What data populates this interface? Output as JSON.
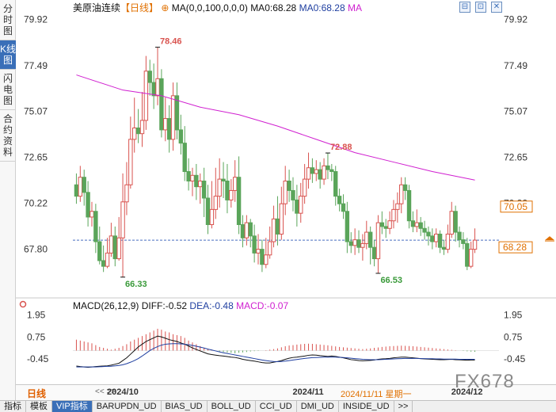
{
  "side_tabs": [
    "分时图",
    "K线图",
    "闪电图",
    "合约资料"
  ],
  "active_side_tab": 1,
  "legend": {
    "name": "美原油连续",
    "period": "【日线】",
    "ma_params": "MA(0,0,100,0,0,0)",
    "ma1": "MA0:68.28",
    "ma2": "MA0:68.28",
    "ma3": "MA"
  },
  "toolbar_icons": [
    "⊟",
    "⊡",
    "✕"
  ],
  "macd_legend": {
    "name": "MACD(26,12,9)",
    "diff": "DIFF:-0.52",
    "dea": "DEA:-0.48",
    "macd": "MACD:-0.07"
  },
  "colors": {
    "up": "#d9534f",
    "down": "#5aa55a",
    "ma": "#d020d0",
    "dea": "#1f3fa0",
    "diff": "#111111",
    "price_line": "#4a6fc0",
    "highlight": "#e07000"
  },
  "price_axis": {
    "ticks": [
      "79.92",
      "77.49",
      "75.07",
      "72.65",
      "70.22",
      "67.80"
    ],
    "left_ticks": [
      "79.92",
      "77.49",
      "75.07",
      "72.65",
      "70.22",
      "67.80"
    ],
    "current_price": "68.28",
    "marked_price": "70.05",
    "min": 65.4,
    "max": 80.2
  },
  "macd_axis": {
    "ticks": [
      "1.95",
      "0.75",
      "-0.45"
    ],
    "min": -1.2,
    "max": 2.2
  },
  "annotations": [
    {
      "text": "78.46",
      "idx": 21,
      "price": 78.46,
      "pos": "high"
    },
    {
      "text": "72.88",
      "idx": 65,
      "price": 72.88,
      "pos": "high"
    },
    {
      "text": "66.33",
      "idx": 12,
      "price": 66.33,
      "pos": "low"
    },
    {
      "text": "66.53",
      "idx": 78,
      "price": 66.53,
      "pos": "low"
    }
  ],
  "bottom_bar": {
    "period": "日线",
    "scroll": "<< >>",
    "dates": [
      {
        "text": "2024/10",
        "idx": 12
      },
      {
        "text": "2024/11",
        "idx": 60
      },
      {
        "text": "2024/12",
        "idx": 101
      }
    ],
    "cursor_date": "2024/11/11 星期一"
  },
  "watermark": "FX678",
  "bottom_tabs": [
    "指标",
    "模板",
    "VIP指标",
    "BARUPDN_UD",
    "BIAS_UD",
    "BOLL_UD",
    "CCI_UD",
    "DMI_UD",
    "INSIDE_UD",
    ">>"
  ],
  "active_bottom_tab": 2,
  "chart_data": {
    "type": "candlestick",
    "candles": [
      [
        71.2,
        70.6,
        71.8,
        70.2
      ],
      [
        70.6,
        71.6,
        72.2,
        70.3
      ],
      [
        71.6,
        70.8,
        72.0,
        70.1
      ],
      [
        70.8,
        69.5,
        71.4,
        69.0
      ],
      [
        69.5,
        69.8,
        70.3,
        69.0
      ],
      [
        69.8,
        68.2,
        70.2,
        67.6
      ],
      [
        68.2,
        67.2,
        69.0,
        67.0
      ],
      [
        67.2,
        66.9,
        68.0,
        66.6
      ],
      [
        66.9,
        67.6,
        68.4,
        66.8
      ],
      [
        67.6,
        68.5,
        69.2,
        67.4
      ],
      [
        68.5,
        67.3,
        69.0,
        66.9
      ],
      [
        67.3,
        68.4,
        69.5,
        67.2
      ],
      [
        68.4,
        70.3,
        71.8,
        66.33
      ],
      [
        70.3,
        71.2,
        72.4,
        69.6
      ],
      [
        71.2,
        73.6,
        74.8,
        71.0
      ],
      [
        73.6,
        74.2,
        75.8,
        72.9
      ],
      [
        74.2,
        73.9,
        75.2,
        73.4
      ],
      [
        73.9,
        74.6,
        76.1,
        73.2
      ],
      [
        74.6,
        77.2,
        78.0,
        74.1
      ],
      [
        77.2,
        76.6,
        77.8,
        75.9
      ],
      [
        76.6,
        75.9,
        77.6,
        75.2
      ],
      [
        75.9,
        76.8,
        78.46,
        75.4
      ],
      [
        76.8,
        74.1,
        77.3,
        73.7
      ],
      [
        74.1,
        74.7,
        75.8,
        73.5
      ],
      [
        74.7,
        73.6,
        75.4,
        72.9
      ],
      [
        73.6,
        75.9,
        76.6,
        73.0
      ],
      [
        75.9,
        74.1,
        76.6,
        73.6
      ],
      [
        74.1,
        73.4,
        74.9,
        72.8
      ],
      [
        73.4,
        71.9,
        74.3,
        71.4
      ],
      [
        71.9,
        71.4,
        72.6,
        70.9
      ],
      [
        71.4,
        71.7,
        72.1,
        70.6
      ],
      [
        71.7,
        71.1,
        72.3,
        70.4
      ],
      [
        71.1,
        71.4,
        71.8,
        70.2
      ],
      [
        71.4,
        70.5,
        72.1,
        69.5
      ],
      [
        70.5,
        69.1,
        71.2,
        68.6
      ],
      [
        69.1,
        69.9,
        71.4,
        68.9
      ],
      [
        69.9,
        70.6,
        72.1,
        69.4
      ],
      [
        70.6,
        71.5,
        72.6,
        70.0
      ],
      [
        71.5,
        71.4,
        72.4,
        70.5
      ],
      [
        71.4,
        70.4,
        72.3,
        69.7
      ],
      [
        70.4,
        70.9,
        71.5,
        70.0
      ],
      [
        70.9,
        71.6,
        72.5,
        70.3
      ],
      [
        71.6,
        69.1,
        72.7,
        68.6
      ],
      [
        69.1,
        68.4,
        69.6,
        67.9
      ],
      [
        68.4,
        69.2,
        69.6,
        68.0
      ],
      [
        69.2,
        68.5,
        69.4,
        67.9
      ],
      [
        68.5,
        67.6,
        69.1,
        67.1
      ],
      [
        67.6,
        67.8,
        68.6,
        67.0
      ],
      [
        67.8,
        67.0,
        68.3,
        66.6
      ],
      [
        67.0,
        67.5,
        68.4,
        66.8
      ],
      [
        67.5,
        68.2,
        69.0,
        67.3
      ],
      [
        68.2,
        69.4,
        70.1,
        67.9
      ],
      [
        69.4,
        68.6,
        70.6,
        68.0
      ],
      [
        68.6,
        70.2,
        71.1,
        68.3
      ],
      [
        70.2,
        71.4,
        72.2,
        69.6
      ],
      [
        71.4,
        70.9,
        72.0,
        70.3
      ],
      [
        70.9,
        70.4,
        71.6,
        69.8
      ],
      [
        70.4,
        69.7,
        71.2,
        69.0
      ],
      [
        69.7,
        70.6,
        71.3,
        69.2
      ],
      [
        70.6,
        71.5,
        72.3,
        70.2
      ],
      [
        71.5,
        72.1,
        72.9,
        71.0
      ],
      [
        72.1,
        71.8,
        72.6,
        71.3
      ],
      [
        71.8,
        72.0,
        72.5,
        71.4
      ],
      [
        72.0,
        71.5,
        72.4,
        71.0
      ],
      [
        71.5,
        72.2,
        72.6,
        71.2
      ],
      [
        72.2,
        72.0,
        72.88,
        71.5
      ],
      [
        72.0,
        71.9,
        72.3,
        71.4
      ],
      [
        71.9,
        70.6,
        72.2,
        70.1
      ],
      [
        70.6,
        70.2,
        71.0,
        69.8
      ],
      [
        70.2,
        69.8,
        70.7,
        69.4
      ],
      [
        69.8,
        68.2,
        70.3,
        67.6
      ],
      [
        68.2,
        68.0,
        68.7,
        67.6
      ],
      [
        68.0,
        68.3,
        68.9,
        67.5
      ],
      [
        68.3,
        67.9,
        68.8,
        67.6
      ],
      [
        67.9,
        68.1,
        68.6,
        67.2
      ],
      [
        68.1,
        68.7,
        69.3,
        67.8
      ],
      [
        68.7,
        67.9,
        69.0,
        67.0
      ],
      [
        67.9,
        67.3,
        68.3,
        66.9
      ],
      [
        67.3,
        69.2,
        69.6,
        66.53
      ],
      [
        69.2,
        69.0,
        69.8,
        68.6
      ],
      [
        69.0,
        68.9,
        69.4,
        68.4
      ],
      [
        68.9,
        69.3,
        69.8,
        68.6
      ],
      [
        69.3,
        69.9,
        70.4,
        68.9
      ],
      [
        69.9,
        70.2,
        70.8,
        69.2
      ],
      [
        70.2,
        71.2,
        71.6,
        69.7
      ],
      [
        71.2,
        70.9,
        71.6,
        70.4
      ],
      [
        70.9,
        69.3,
        71.2,
        68.9
      ],
      [
        69.3,
        69.0,
        69.8,
        68.7
      ],
      [
        69.0,
        69.2,
        69.9,
        68.7
      ],
      [
        69.2,
        68.9,
        69.5,
        68.5
      ],
      [
        68.9,
        68.7,
        69.3,
        68.3
      ],
      [
        68.7,
        68.5,
        69.0,
        68.0
      ],
      [
        68.5,
        68.2,
        68.9,
        67.8
      ],
      [
        68.2,
        68.6,
        68.9,
        67.9
      ],
      [
        68.6,
        67.9,
        68.8,
        67.6
      ],
      [
        67.9,
        67.8,
        68.3,
        67.5
      ],
      [
        67.8,
        68.6,
        69.1,
        67.6
      ],
      [
        68.6,
        69.8,
        70.3,
        68.4
      ],
      [
        69.8,
        68.7,
        70.1,
        68.2
      ],
      [
        68.7,
        68.3,
        69.0,
        67.9
      ],
      [
        68.3,
        68.1,
        68.7,
        67.8
      ],
      [
        68.1,
        66.9,
        68.4,
        66.7
      ],
      [
        66.9,
        67.8,
        68.2,
        66.8
      ],
      [
        67.8,
        68.28,
        68.9,
        67.6
      ]
    ],
    "ma": [
      {
        "idx": 0,
        "value": 77.0
      },
      {
        "idx": 12,
        "value": 76.2
      },
      {
        "idx": 22,
        "value": 75.9
      },
      {
        "idx": 32,
        "value": 75.3
      },
      {
        "idx": 42,
        "value": 74.9
      },
      {
        "idx": 52,
        "value": 74.3
      },
      {
        "idx": 62,
        "value": 73.6
      },
      {
        "idx": 72,
        "value": 72.9
      },
      {
        "idx": 82,
        "value": 72.4
      },
      {
        "idx": 92,
        "value": 71.9
      },
      {
        "idx": 103,
        "value": 71.45
      }
    ],
    "macd_hist": [
      0.6,
      0.55,
      0.5,
      0.45,
      0.4,
      0.3,
      0.2,
      0.15,
      0.1,
      0.05,
      0.1,
      0.15,
      0.25,
      0.35,
      0.5,
      0.6,
      0.7,
      0.8,
      0.9,
      1.0,
      1.1,
      1.2,
      1.15,
      1.05,
      1.0,
      0.9,
      0.85,
      0.8,
      0.7,
      0.55,
      0.45,
      0.35,
      0.25,
      0.15,
      0.1,
      0.05,
      0.0,
      -0.05,
      -0.08,
      -0.1,
      -0.12,
      -0.15,
      -0.12,
      -0.1,
      -0.08,
      -0.05,
      -0.03,
      -0.02,
      0.0,
      0.02,
      0.05,
      0.08,
      0.12,
      0.18,
      0.24,
      0.28,
      0.3,
      0.33,
      0.35,
      0.37,
      0.38,
      0.37,
      0.35,
      0.33,
      0.31,
      0.29,
      0.26,
      0.23,
      0.2,
      0.18,
      0.16,
      0.14,
      0.12,
      0.1,
      0.08,
      0.1,
      0.12,
      0.15,
      0.17,
      0.2,
      0.22,
      0.24,
      0.25,
      0.26,
      0.27,
      0.26,
      0.25,
      0.24,
      0.22,
      0.2,
      0.18,
      0.16,
      0.14,
      0.12,
      0.1,
      0.08,
      0.06,
      0.04,
      0.02,
      0.0,
      -0.02,
      -0.04,
      -0.06,
      -0.07
    ],
    "macd_diff": [
      -0.85,
      -0.88,
      -0.9,
      -0.92,
      -0.9,
      -0.88,
      -0.86,
      -0.85,
      -0.84,
      -0.8,
      -0.75,
      -0.7,
      -0.55,
      -0.4,
      -0.2,
      0.0,
      0.2,
      0.35,
      0.5,
      0.6,
      0.7,
      0.8,
      0.75,
      0.68,
      0.6,
      0.55,
      0.5,
      0.42,
      0.35,
      0.25,
      0.15,
      0.06,
      -0.02,
      -0.1,
      -0.18,
      -0.22,
      -0.25,
      -0.28,
      -0.3,
      -0.33,
      -0.36,
      -0.38,
      -0.42,
      -0.48,
      -0.52,
      -0.55,
      -0.58,
      -0.62,
      -0.66,
      -0.68,
      -0.68,
      -0.64,
      -0.6,
      -0.55,
      -0.48,
      -0.42,
      -0.38,
      -0.36,
      -0.33,
      -0.3,
      -0.26,
      -0.24,
      -0.25,
      -0.28,
      -0.3,
      -0.32,
      -0.3,
      -0.32,
      -0.36,
      -0.4,
      -0.45,
      -0.5,
      -0.52,
      -0.55,
      -0.56,
      -0.55,
      -0.54,
      -0.52,
      -0.48,
      -0.46,
      -0.45,
      -0.43,
      -0.4,
      -0.38,
      -0.36,
      -0.36,
      -0.38,
      -0.4,
      -0.42,
      -0.44,
      -0.46,
      -0.47,
      -0.48,
      -0.49,
      -0.5,
      -0.5,
      -0.49,
      -0.48,
      -0.5,
      -0.51,
      -0.52,
      -0.53,
      -0.52,
      -0.52
    ],
    "macd_dea": [
      -0.9,
      -0.9,
      -0.9,
      -0.9,
      -0.9,
      -0.9,
      -0.89,
      -0.88,
      -0.87,
      -0.86,
      -0.84,
      -0.82,
      -0.78,
      -0.72,
      -0.64,
      -0.55,
      -0.44,
      -0.3,
      -0.15,
      0.0,
      0.12,
      0.22,
      0.3,
      0.35,
      0.37,
      0.38,
      0.38,
      0.37,
      0.35,
      0.32,
      0.28,
      0.24,
      0.19,
      0.14,
      0.08,
      0.03,
      -0.02,
      -0.07,
      -0.12,
      -0.16,
      -0.2,
      -0.24,
      -0.28,
      -0.32,
      -0.36,
      -0.4,
      -0.44,
      -0.48,
      -0.52,
      -0.55,
      -0.58,
      -0.6,
      -0.61,
      -0.6,
      -0.58,
      -0.55,
      -0.52,
      -0.49,
      -0.46,
      -0.43,
      -0.41,
      -0.39,
      -0.38,
      -0.37,
      -0.36,
      -0.36,
      -0.36,
      -0.36,
      -0.37,
      -0.38,
      -0.4,
      -0.42,
      -0.44,
      -0.46,
      -0.48,
      -0.49,
      -0.5,
      -0.5,
      -0.5,
      -0.49,
      -0.48,
      -0.47,
      -0.46,
      -0.45,
      -0.44,
      -0.43,
      -0.43,
      -0.43,
      -0.43,
      -0.44,
      -0.44,
      -0.45,
      -0.45,
      -0.46,
      -0.46,
      -0.47,
      -0.47,
      -0.47,
      -0.47,
      -0.48,
      -0.48,
      -0.48,
      -0.48,
      -0.48
    ]
  }
}
